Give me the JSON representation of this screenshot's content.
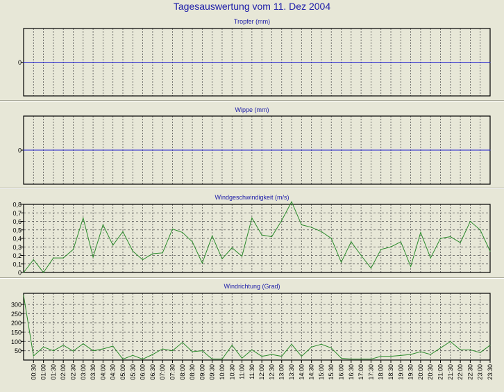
{
  "page_title": "Tagesauswertung vom 11. Dez 2004",
  "colors": {
    "title": "#1a1aa8",
    "panel_bg": "#e7e7d7",
    "plot_border": "#000000",
    "grid": "#555555",
    "zero_line": "#1c1ccc",
    "series_line": "#2a8a2a"
  },
  "time_labels": [
    "00:30",
    "01:00",
    "01:30",
    "02:00",
    "02:30",
    "03:00",
    "03:30",
    "04:00",
    "04:30",
    "05:00",
    "05:30",
    "06:00",
    "06:30",
    "07:00",
    "07:30",
    "08:00",
    "08:30",
    "09:00",
    "09:30",
    "10:00",
    "10:30",
    "11:00",
    "11:30",
    "12:00",
    "12:30",
    "13:00",
    "13:30",
    "14:00",
    "14:30",
    "15:00",
    "15:30",
    "16:00",
    "16:30",
    "17:00",
    "17:30",
    "18:00",
    "18:30",
    "19:00",
    "19:30",
    "20:00",
    "20:30",
    "21:00",
    "21:30",
    "22:00",
    "22:30",
    "23:00",
    "23:30"
  ],
  "chart_data": [
    {
      "type": "line",
      "title": "Tropfer (mm)",
      "y_ticks": [
        "0"
      ],
      "ylim": [
        -1,
        1
      ],
      "grid": true,
      "series": [
        {
          "values": [
            0,
            0,
            0,
            0,
            0,
            0,
            0,
            0,
            0,
            0,
            0,
            0,
            0,
            0,
            0,
            0,
            0,
            0,
            0,
            0,
            0,
            0,
            0,
            0,
            0,
            0,
            0,
            0,
            0,
            0,
            0,
            0,
            0,
            0,
            0,
            0,
            0,
            0,
            0,
            0,
            0,
            0,
            0,
            0,
            0,
            0,
            0,
            0
          ]
        }
      ]
    },
    {
      "type": "line",
      "title": "Wippe (mm)",
      "y_ticks": [
        "0"
      ],
      "ylim": [
        -1,
        1
      ],
      "grid": true,
      "series": [
        {
          "values": [
            0,
            0,
            0,
            0,
            0,
            0,
            0,
            0,
            0,
            0,
            0,
            0,
            0,
            0,
            0,
            0,
            0,
            0,
            0,
            0,
            0,
            0,
            0,
            0,
            0,
            0,
            0,
            0,
            0,
            0,
            0,
            0,
            0,
            0,
            0,
            0,
            0,
            0,
            0,
            0,
            0,
            0,
            0,
            0,
            0,
            0,
            0,
            0
          ]
        }
      ]
    },
    {
      "type": "line",
      "title": "Windgeschwindigkeit (m/s)",
      "y_ticks": [
        "0",
        "0,1",
        "0,2",
        "0,3",
        "0,4",
        "0,5",
        "0,6",
        "0,7",
        "0,8"
      ],
      "ylim": [
        0,
        0.8
      ],
      "grid": true,
      "series": [
        {
          "values": [
            0,
            0.15,
            0,
            0.17,
            0.17,
            0.27,
            0.64,
            0.18,
            0.56,
            0.32,
            0.48,
            0.25,
            0.15,
            0.22,
            0.23,
            0.51,
            0.47,
            0.36,
            0.11,
            0.43,
            0.16,
            0.29,
            0.19,
            0.64,
            0.44,
            0.42,
            0.61,
            0.83,
            0.56,
            0.53,
            0.48,
            0.4,
            0.12,
            0.36,
            0.2,
            0.05,
            0.27,
            0.3,
            0.36,
            0.07,
            0.47,
            0.17,
            0.4,
            0.42,
            0.35,
            0.6,
            0.5,
            0.25
          ]
        }
      ]
    },
    {
      "type": "line",
      "title": "Windrichtung (Grad)",
      "y_ticks": [
        "50",
        "100",
        "150",
        "200",
        "250",
        "300"
      ],
      "ylim": [
        0,
        360
      ],
      "grid": true,
      "series": [
        {
          "values": [
            348,
            22,
            70,
            50,
            80,
            48,
            88,
            50,
            60,
            75,
            5,
            25,
            5,
            30,
            60,
            50,
            95,
            45,
            50,
            5,
            5,
            80,
            10,
            55,
            20,
            30,
            20,
            85,
            20,
            70,
            85,
            65,
            10,
            5,
            5,
            5,
            20,
            20,
            25,
            30,
            45,
            30,
            65,
            100,
            55,
            55,
            40,
            80
          ]
        }
      ]
    }
  ]
}
